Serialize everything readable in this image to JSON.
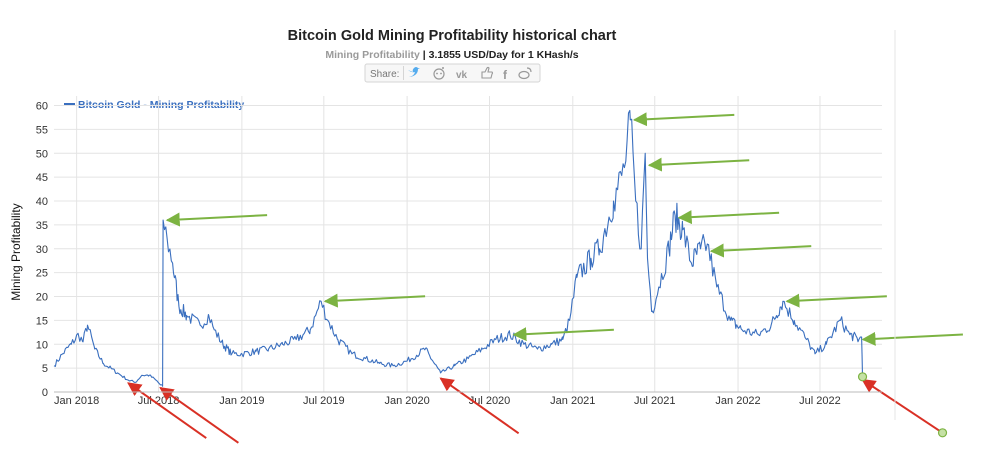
{
  "chart_data": {
    "type": "line",
    "title": "Bitcoin Gold Mining Profitability historical chart",
    "subtitle": {
      "metric": "Mining Profitability",
      "separator": " | ",
      "value": "3.1855 USD/Day for 1 KHash/s"
    },
    "share_label": "Share:",
    "share_icons": [
      "twitter-icon",
      "reddit-icon",
      "vk-icon",
      "like-icon",
      "facebook-icon",
      "weibo-icon"
    ],
    "ylabel": "Mining Profitability",
    "ylim": [
      0,
      62
    ],
    "yticks": [
      0,
      5,
      10,
      15,
      20,
      25,
      30,
      35,
      40,
      45,
      50,
      55,
      60
    ],
    "xlim": [
      "2017-11-12",
      "2022-11-15"
    ],
    "xticks": [
      {
        "date": "2018-01-01",
        "label": "Jan 2018"
      },
      {
        "date": "2018-07-01",
        "label": "Jul 2018"
      },
      {
        "date": "2019-01-01",
        "label": "Jan 2019"
      },
      {
        "date": "2019-07-01",
        "label": "Jul 2019"
      },
      {
        "date": "2020-01-01",
        "label": "Jan 2020"
      },
      {
        "date": "2020-07-01",
        "label": "Jul 2020"
      },
      {
        "date": "2021-01-01",
        "label": "Jan 2021"
      },
      {
        "date": "2021-07-01",
        "label": "Jul 2021"
      },
      {
        "date": "2022-01-01",
        "label": "Jan 2022"
      },
      {
        "date": "2022-07-01",
        "label": "Jul 2022"
      }
    ],
    "grid": true,
    "legend_position": "top-left",
    "series": [
      {
        "name": "Bitcoin Gold - Mining Profitability",
        "color": "#3a6fbf",
        "points": [
          [
            "2017-11-12",
            5.5
          ],
          [
            "2017-12-01",
            8
          ],
          [
            "2017-12-20",
            10
          ],
          [
            "2018-01-05",
            12
          ],
          [
            "2018-01-15",
            10.5
          ],
          [
            "2018-01-25",
            14
          ],
          [
            "2018-02-10",
            9
          ],
          [
            "2018-03-01",
            6
          ],
          [
            "2018-04-01",
            4
          ],
          [
            "2018-04-25",
            2.5
          ],
          [
            "2018-05-10",
            2
          ],
          [
            "2018-05-25",
            3.5
          ],
          [
            "2018-06-10",
            3.5
          ],
          [
            "2018-06-25",
            2.5
          ],
          [
            "2018-07-05",
            1.5
          ],
          [
            "2018-07-10",
            1.2
          ],
          [
            "2018-07-11",
            36
          ],
          [
            "2018-07-20",
            32
          ],
          [
            "2018-08-01",
            27
          ],
          [
            "2018-08-15",
            18
          ],
          [
            "2018-09-01",
            16
          ],
          [
            "2018-10-01",
            14
          ],
          [
            "2018-10-20",
            16
          ],
          [
            "2018-11-01",
            13
          ],
          [
            "2018-11-20",
            10
          ],
          [
            "2018-12-10",
            8
          ],
          [
            "2019-01-01",
            8
          ],
          [
            "2019-02-01",
            8.5
          ],
          [
            "2019-03-01",
            9
          ],
          [
            "2019-04-01",
            10
          ],
          [
            "2019-05-01",
            11
          ],
          [
            "2019-06-01",
            13
          ],
          [
            "2019-06-25",
            19
          ],
          [
            "2019-07-10",
            15
          ],
          [
            "2019-08-01",
            11
          ],
          [
            "2019-09-01",
            8
          ],
          [
            "2019-10-01",
            7
          ],
          [
            "2019-11-01",
            6
          ],
          [
            "2019-12-01",
            5.5
          ],
          [
            "2020-01-01",
            6.5
          ],
          [
            "2020-02-10",
            9
          ],
          [
            "2020-03-01",
            6
          ],
          [
            "2020-03-15",
            4
          ],
          [
            "2020-04-15",
            5.5
          ],
          [
            "2020-05-15",
            7
          ],
          [
            "2020-06-15",
            9
          ],
          [
            "2020-07-15",
            11
          ],
          [
            "2020-08-15",
            12
          ],
          [
            "2020-09-15",
            10
          ],
          [
            "2020-10-15",
            9
          ],
          [
            "2020-11-15",
            10
          ],
          [
            "2020-12-10",
            11
          ],
          [
            "2020-12-25",
            15
          ],
          [
            "2021-01-10",
            24
          ],
          [
            "2021-02-10",
            28
          ],
          [
            "2021-03-01",
            30
          ],
          [
            "2021-04-01",
            40
          ],
          [
            "2021-04-25",
            47
          ],
          [
            "2021-05-08",
            57
          ],
          [
            "2021-05-20",
            40
          ],
          [
            "2021-06-01",
            30
          ],
          [
            "2021-06-10",
            50
          ],
          [
            "2021-06-15",
            28
          ],
          [
            "2021-06-25",
            17
          ],
          [
            "2021-07-10",
            22
          ],
          [
            "2021-08-01",
            30
          ],
          [
            "2021-08-15",
            37
          ],
          [
            "2021-09-01",
            34
          ],
          [
            "2021-09-20",
            27
          ],
          [
            "2021-10-10",
            30
          ],
          [
            "2021-10-25",
            31
          ],
          [
            "2021-11-15",
            22
          ],
          [
            "2021-12-15",
            15
          ],
          [
            "2022-01-10",
            13
          ],
          [
            "2022-02-15",
            12
          ],
          [
            "2022-03-15",
            14
          ],
          [
            "2022-04-10",
            19
          ],
          [
            "2022-05-05",
            15
          ],
          [
            "2022-06-01",
            11
          ],
          [
            "2022-06-20",
            8
          ],
          [
            "2022-07-15",
            10
          ],
          [
            "2022-08-15",
            15
          ],
          [
            "2022-09-05",
            12
          ],
          [
            "2022-09-25",
            11
          ],
          [
            "2022-10-01",
            11.5
          ],
          [
            "2022-10-03",
            3.1855
          ]
        ]
      }
    ],
    "green_arrow_targets": [
      [
        "2018-07-11",
        36
      ],
      [
        "2019-06-25",
        19
      ],
      [
        "2020-08-15",
        12
      ],
      [
        "2021-05-08",
        57
      ],
      [
        "2021-06-10",
        47.5
      ],
      [
        "2021-08-15",
        36.5
      ],
      [
        "2021-10-25",
        29.5
      ],
      [
        "2022-04-10",
        19
      ],
      [
        "2022-09-25",
        11
      ]
    ],
    "red_arrow_targets": [
      [
        "2018-04-25",
        2.5
      ],
      [
        "2018-07-05",
        1.5
      ],
      [
        "2020-03-15",
        3.5
      ],
      [
        "2022-10-03",
        3.1855
      ]
    ]
  }
}
